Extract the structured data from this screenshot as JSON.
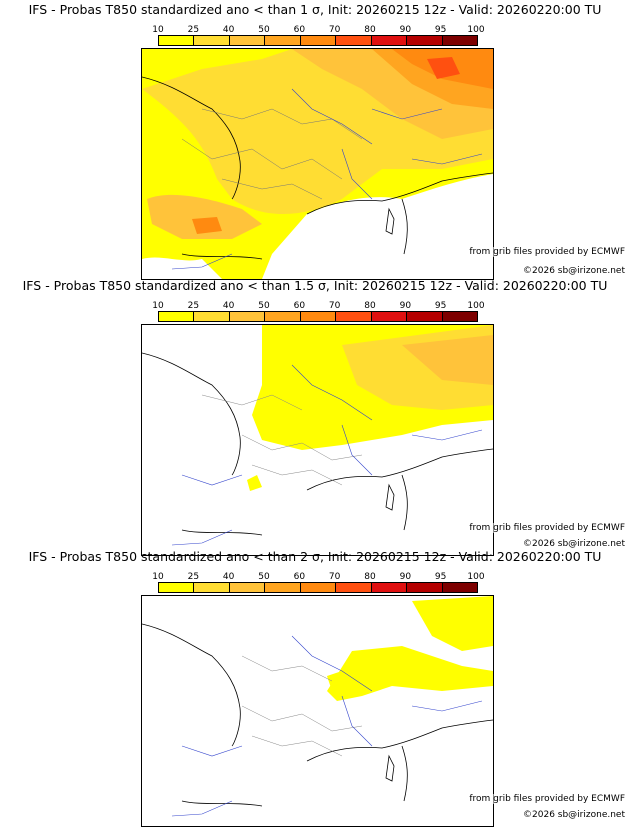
{
  "colorbar": {
    "ticks": [
      "10",
      "25",
      "40",
      "50",
      "60",
      "70",
      "80",
      "90",
      "95",
      "100"
    ],
    "colors": [
      "#ffff00",
      "#ffdd33",
      "#ffc33a",
      "#ffa520",
      "#ff8a10",
      "#ff5010",
      "#e01010",
      "#b50000",
      "#7d0000"
    ]
  },
  "credits": {
    "source": "from grib files provided by ECMWF",
    "copyright": "©2026 sb@irizone.net"
  },
  "panels": [
    {
      "title": "IFS - Probas T850  standardized ano < than 1 σ, Init: 20260215 12z - Valid: 20260220:00 TU",
      "threshold": "1 σ"
    },
    {
      "title": "IFS - Probas T850  standardized ano < than 1.5 σ, Init: 20260215 12z - Valid: 20260220:00 TU",
      "threshold": "1.5 σ"
    },
    {
      "title": "IFS - Probas T850  standardized ano < than 2 σ, Init: 20260215 12z - Valid: 20260220:00 TU",
      "threshold": "2 σ"
    }
  ]
}
